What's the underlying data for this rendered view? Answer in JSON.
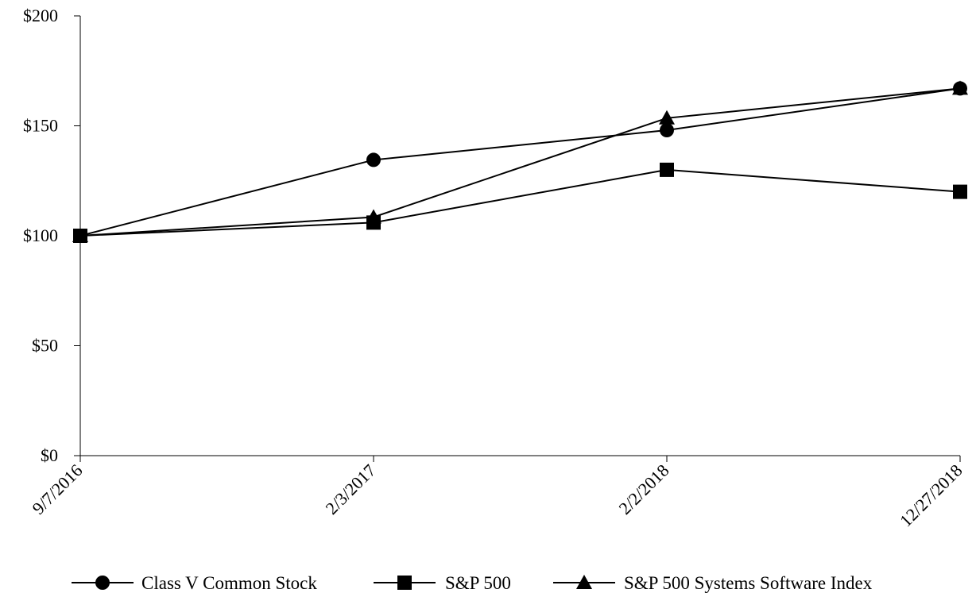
{
  "chart_data": {
    "type": "line",
    "x": [
      "9/7/2016",
      "2/3/2017",
      "2/2/2018",
      "12/27/2018"
    ],
    "yticks": [
      "$0",
      "$50",
      "$100",
      "$150",
      "$200"
    ],
    "ylim": [
      0,
      200
    ],
    "grid": false,
    "legend_position": "bottom",
    "series": [
      {
        "name": "Class V Common Stock",
        "marker": "circle",
        "values": [
          100,
          134.5,
          148,
          167
        ]
      },
      {
        "name": "S&P 500",
        "marker": "square",
        "values": [
          100,
          106,
          130,
          120
        ]
      },
      {
        "name": "S&P 500 Systems Software Index",
        "marker": "triangle",
        "values": [
          100,
          108.5,
          153.5,
          167
        ]
      }
    ]
  }
}
